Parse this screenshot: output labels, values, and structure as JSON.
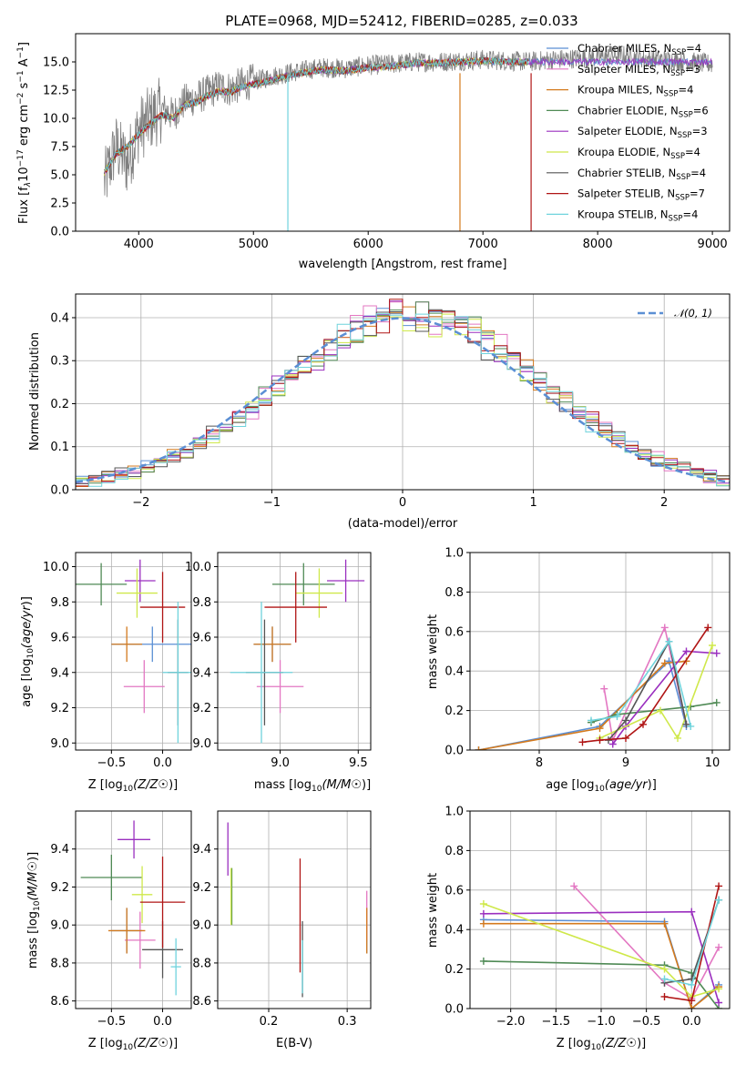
{
  "figure": {
    "title": "PLATE=0968, MJD=52412, FIBERID=0285, z=0.033"
  },
  "series": [
    {
      "name": "Chabrier MILES, N$_{SSP}$=4",
      "label": "Chabrier MILES, N",
      "n": "=4",
      "color": "#5b8fd4"
    },
    {
      "name": "Salpeter MILES, N$_{SSP}$=3",
      "label": "Salpeter MILES, N",
      "n": "=3",
      "color": "#e377c2"
    },
    {
      "name": "Kroupa MILES, N$_{SSP}$=4",
      "label": "Kroupa MILES, N",
      "n": "=4",
      "color": "#d47a1d"
    },
    {
      "name": "Chabrier ELODIE, N$_{SSP}$=6",
      "label": "Chabrier ELODIE, N",
      "n": "=6",
      "color": "#4f8a55"
    },
    {
      "name": "Salpeter ELODIE, N$_{SSP}$=3",
      "label": "Salpeter ELODIE, N",
      "n": "=3",
      "color": "#9a2fbf"
    },
    {
      "name": "Kroupa ELODIE, N$_{SSP}$=4",
      "label": "Kroupa ELODIE, N",
      "n": "=4",
      "color": "#cfe84a"
    },
    {
      "name": "Chabrier STELIB, N$_{SSP}$=4",
      "label": "Chabrier STELIB, N",
      "n": "=4",
      "color": "#555555"
    },
    {
      "name": "Salpeter STELIB, N$_{SSP}$=7",
      "label": "Salpeter STELIB, N",
      "n": "=7",
      "color": "#b01515"
    },
    {
      "name": "Kroupa STELIB, N$_{SSP}$=4",
      "label": "Kroupa STELIB, N",
      "n": "=4",
      "color": "#6fd3dc"
    }
  ],
  "sub_ssp": "SSP",
  "chart_data": [
    {
      "id": "spectrum",
      "type": "line",
      "xlabel": "wavelength [Angstrom, rest frame]",
      "ylabel": "Flux [f",
      "xlim": [
        3450,
        9150
      ],
      "ylim": [
        0,
        17.5
      ],
      "xticks": [
        4000,
        5000,
        6000,
        7000,
        8000,
        9000
      ],
      "yticks": [
        0.0,
        2.5,
        5.0,
        7.5,
        10.0,
        12.5,
        15.0
      ],
      "ytick_labels": [
        "0.0",
        "2.5",
        "5.0",
        "7.5",
        "10.0",
        "12.5",
        "15.0"
      ],
      "data_wave": [
        3700,
        3800,
        3900,
        4000,
        4100,
        4200,
        4300,
        4400,
        4500,
        4600,
        4700,
        4800,
        4900,
        5000,
        5200,
        5400,
        5600,
        5800,
        6000,
        6200,
        6400,
        6600,
        6800,
        7000,
        7200,
        7400,
        7600,
        7800,
        8000,
        8200,
        8400,
        8600,
        8800,
        9000
      ],
      "data_flux": [
        4.2,
        7.5,
        6.0,
        9.0,
        10.0,
        10.8,
        10.3,
        11.5,
        11.8,
        12.3,
        12.8,
        12.6,
        13.0,
        13.3,
        13.8,
        14.2,
        14.5,
        14.4,
        14.7,
        14.8,
        15.0,
        15.0,
        15.1,
        15.2,
        15.1,
        15.0,
        15.2,
        15.3,
        15.4,
        15.6,
        15.3,
        15.2,
        15.0,
        14.8
      ],
      "model_wave": [
        3700,
        3800,
        3900,
        4000,
        4100,
        4200,
        4300,
        4400,
        4500,
        4600,
        4700,
        4800,
        4900,
        5000,
        5200,
        5400,
        5600,
        5800,
        6000,
        6200,
        6400,
        6600,
        6800,
        7000,
        7200,
        7400
      ],
      "model_flux": [
        5.2,
        6.8,
        7.5,
        8.6,
        9.5,
        10.3,
        10.0,
        11.2,
        11.4,
        12.0,
        12.4,
        12.3,
        12.8,
        13.0,
        13.5,
        14.0,
        14.3,
        14.2,
        14.5,
        14.6,
        14.9,
        14.9,
        15.0,
        15.1,
        15.0,
        15.0
      ]
    },
    {
      "id": "residuals",
      "type": "histogram",
      "xlabel": "(data-model)/error",
      "ylabel": "Normed distribution",
      "xlim": [
        -2.5,
        2.5
      ],
      "ylim": [
        0,
        0.455
      ],
      "xticks": [
        -2,
        -1,
        0,
        1,
        2
      ],
      "xtick_labels": [
        "−2",
        "−1",
        "0",
        "1",
        "2"
      ],
      "yticks": [
        0.0,
        0.1,
        0.2,
        0.3,
        0.4
      ],
      "ytick_labels": [
        "0.0",
        "0.1",
        "0.2",
        "0.3",
        "0.4"
      ],
      "legend": "𝒩(0, 1)",
      "gauss_color": "#5b8fd4"
    },
    {
      "id": "Z_age",
      "type": "errorbar",
      "xlabel": "Z [log",
      "ylabel": "age  [log",
      "xlim": [
        -0.85,
        0.28
      ],
      "ylim": [
        8.96,
        10.08
      ],
      "xticks": [
        -0.5,
        0.0
      ],
      "xtick_labels": [
        "−0.5",
        "0.0"
      ],
      "yticks": [
        9.0,
        9.2,
        9.4,
        9.6,
        9.8,
        10.0
      ],
      "ytick_labels": [
        "9.0",
        "9.2",
        "9.4",
        "9.6",
        "9.8",
        "10.0"
      ],
      "points": [
        {
          "s": 0,
          "x": -0.1,
          "y": 9.56,
          "xe": 0.4,
          "ye": 0.1
        },
        {
          "s": 1,
          "x": -0.18,
          "y": 9.32,
          "xe": 0.2,
          "ye": 0.15
        },
        {
          "s": 2,
          "x": -0.35,
          "y": 9.56,
          "xe": 0.15,
          "ye": 0.1
        },
        {
          "s": 3,
          "x": -0.6,
          "y": 9.9,
          "xe": 0.25,
          "ye": 0.12
        },
        {
          "s": 4,
          "x": -0.22,
          "y": 9.92,
          "xe": 0.15,
          "ye": 0.12
        },
        {
          "s": 5,
          "x": -0.25,
          "y": 9.85,
          "xe": 0.2,
          "ye": 0.14
        },
        {
          "s": 6,
          "x": 0.15,
          "y": 9.4,
          "xe": 0.1,
          "ye": 0.3
        },
        {
          "s": 7,
          "x": 0.0,
          "y": 9.77,
          "xe": 0.22,
          "ye": 0.2
        },
        {
          "s": 8,
          "x": 0.15,
          "y": 9.4,
          "xe": 0.15,
          "ye": 0.4
        }
      ]
    },
    {
      "id": "mass_age",
      "type": "errorbar",
      "xlabel": "mass [log",
      "ylabel": "",
      "xlim": [
        8.6,
        9.58
      ],
      "ylim": [
        8.96,
        10.08
      ],
      "xticks": [
        9.0,
        9.5
      ],
      "xtick_labels": [
        "9.0",
        "9.5"
      ],
      "yticks": [
        9.0,
        9.2,
        9.4,
        9.6,
        9.8,
        10.0
      ],
      "ytick_labels": [
        "9.0",
        "9.2",
        "9.4",
        "9.6",
        "9.8",
        "10.0"
      ],
      "points": [
        {
          "s": 0,
          "x": 8.95,
          "y": 9.56,
          "xe": 0.12,
          "ye": 0.1
        },
        {
          "s": 1,
          "x": 9.0,
          "y": 9.32,
          "xe": 0.15,
          "ye": 0.15
        },
        {
          "s": 2,
          "x": 8.95,
          "y": 9.56,
          "xe": 0.12,
          "ye": 0.1
        },
        {
          "s": 3,
          "x": 9.15,
          "y": 9.9,
          "xe": 0.2,
          "ye": 0.12
        },
        {
          "s": 4,
          "x": 9.42,
          "y": 9.92,
          "xe": 0.12,
          "ye": 0.12
        },
        {
          "s": 5,
          "x": 9.25,
          "y": 9.85,
          "xe": 0.15,
          "ye": 0.14
        },
        {
          "s": 6,
          "x": 8.9,
          "y": 9.4,
          "xe": 0.12,
          "ye": 0.3
        },
        {
          "s": 7,
          "x": 9.1,
          "y": 9.77,
          "xe": 0.2,
          "ye": 0.2
        },
        {
          "s": 8,
          "x": 8.88,
          "y": 9.4,
          "xe": 0.2,
          "ye": 0.4
        }
      ]
    },
    {
      "id": "age_weight",
      "type": "line",
      "xlabel": "age  [log",
      "ylabel": "mass weight",
      "xlim": [
        7.2,
        10.2
      ],
      "ylim": [
        0,
        1.0
      ],
      "xticks": [
        8,
        9,
        10
      ],
      "xtick_labels": [
        "8",
        "9",
        "10"
      ],
      "yticks": [
        0.0,
        0.2,
        0.4,
        0.6,
        0.8,
        1.0
      ],
      "ytick_labels": [
        "0.0",
        "0.2",
        "0.4",
        "0.6",
        "0.8",
        "1.0"
      ],
      "lines": [
        {
          "s": 0,
          "x": [
            7.3,
            8.7,
            9.5,
            9.7
          ],
          "y": [
            0.0,
            0.12,
            0.45,
            0.12
          ]
        },
        {
          "s": 1,
          "x": 8.75,
          "y": 0.31,
          "xs": [
            8.75,
            8.85,
            9.45,
            9.7
          ],
          "ys": [
            0.31,
            0.05,
            0.62,
            0.13
          ]
        },
        {
          "s": 2,
          "x": [
            7.3,
            8.7,
            9.45,
            9.7
          ],
          "y": [
            0.0,
            0.11,
            0.44,
            0.45
          ]
        },
        {
          "s": 3,
          "x": [
            8.6,
            8.9,
            9.75,
            10.05
          ],
          "y": [
            0.14,
            0.18,
            0.22,
            0.24
          ]
        },
        {
          "s": 4,
          "x": [
            8.85,
            9.0,
            9.7,
            10.05
          ],
          "y": [
            0.03,
            0.12,
            0.5,
            0.49
          ]
        },
        {
          "s": 5,
          "x": [
            8.7,
            9.4,
            9.6,
            10.0
          ],
          "y": [
            0.06,
            0.2,
            0.06,
            0.53
          ]
        },
        {
          "s": 6,
          "x": [
            8.8,
            9.0,
            9.5,
            9.7
          ],
          "y": [
            0.05,
            0.15,
            0.55,
            0.13
          ]
        },
        {
          "s": 7,
          "x": [
            8.5,
            8.7,
            9.0,
            9.2,
            9.95
          ],
          "y": [
            0.04,
            0.05,
            0.06,
            0.13,
            0.62
          ]
        },
        {
          "s": 8,
          "x": [
            8.6,
            8.9,
            9.5,
            9.75
          ],
          "y": [
            0.15,
            0.17,
            0.55,
            0.12
          ]
        }
      ]
    },
    {
      "id": "Z_mass",
      "type": "errorbar",
      "xlabel": "Z [log",
      "ylabel": "mass [log",
      "xlim": [
        -0.85,
        0.28
      ],
      "ylim": [
        8.56,
        9.6
      ],
      "xticks": [
        -0.5,
        0.0
      ],
      "xtick_labels": [
        "−0.5",
        "0.0"
      ],
      "yticks": [
        8.6,
        8.8,
        9.0,
        9.2,
        9.4
      ],
      "ytick_labels": [
        "8.6",
        "8.8",
        "9.0",
        "9.2",
        "9.4"
      ],
      "points": [
        {
          "s": 0,
          "x": -0.35,
          "y": 8.97,
          "xe": 0.15,
          "ye": 0.12
        },
        {
          "s": 1,
          "x": -0.22,
          "y": 8.92,
          "xe": 0.15,
          "ye": 0.15
        },
        {
          "s": 2,
          "x": -0.35,
          "y": 8.97,
          "xe": 0.18,
          "ye": 0.12
        },
        {
          "s": 3,
          "x": -0.5,
          "y": 9.25,
          "xe": 0.3,
          "ye": 0.12
        },
        {
          "s": 4,
          "x": -0.28,
          "y": 9.45,
          "xe": 0.16,
          "ye": 0.1
        },
        {
          "s": 5,
          "x": -0.2,
          "y": 9.16,
          "xe": 0.1,
          "ye": 0.15
        },
        {
          "s": 6,
          "x": 0.0,
          "y": 8.87,
          "xe": 0.2,
          "ye": 0.15
        },
        {
          "s": 7,
          "x": 0.0,
          "y": 9.12,
          "xe": 0.22,
          "ye": 0.24
        },
        {
          "s": 8,
          "x": 0.13,
          "y": 8.78,
          "xe": 0.05,
          "ye": 0.15
        }
      ]
    },
    {
      "id": "ebv_mass",
      "type": "errorbar",
      "xlabel": "E(B-V)",
      "ylabel": "",
      "xlim": [
        0.135,
        0.33
      ],
      "ylim": [
        8.56,
        9.6
      ],
      "xticks": [
        0.2,
        0.3
      ],
      "xtick_labels": [
        "0.2",
        "0.3"
      ],
      "yticks": [
        8.6,
        8.8,
        9.0,
        9.2,
        9.4
      ],
      "ytick_labels": [
        "8.6",
        "8.8",
        "9.0",
        "9.2",
        "9.4"
      ],
      "points": [
        {
          "s": 0,
          "x": 0.325,
          "y": 8.97,
          "xe": 0.0,
          "ye": 0.12
        },
        {
          "s": 1,
          "x": 0.325,
          "y": 9.05,
          "xe": 0.0,
          "ye": 0.13
        },
        {
          "s": 2,
          "x": 0.325,
          "y": 8.97,
          "xe": 0.0,
          "ye": 0.12
        },
        {
          "s": 3,
          "x": 0.153,
          "y": 9.15,
          "xe": 0.0,
          "ye": 0.15
        },
        {
          "s": 4,
          "x": 0.148,
          "y": 9.4,
          "xe": 0.0,
          "ye": 0.14
        },
        {
          "s": 5,
          "x": 0.152,
          "y": 9.15,
          "xe": 0.0,
          "ye": 0.15
        },
        {
          "s": 6,
          "x": 0.243,
          "y": 8.82,
          "xe": 0.0,
          "ye": 0.2
        },
        {
          "s": 7,
          "x": 0.24,
          "y": 9.05,
          "xe": 0.0,
          "ye": 0.3
        },
        {
          "s": 8,
          "x": 0.243,
          "y": 8.78,
          "xe": 0.0,
          "ye": 0.14
        }
      ]
    },
    {
      "id": "Z_weight",
      "type": "line",
      "xlabel": "Z [log",
      "ylabel": "mass weight",
      "xlim": [
        -2.45,
        0.42
      ],
      "ylim": [
        0,
        1.0
      ],
      "xticks": [
        -2.0,
        -1.5,
        -1.0,
        -0.5,
        0.0
      ],
      "xtick_labels": [
        "−2.0",
        "−1.5",
        "−1.0",
        "−0.5",
        "0.0"
      ],
      "yticks": [
        0.0,
        0.2,
        0.4,
        0.6,
        0.8,
        1.0
      ],
      "ytick_labels": [
        "0.0",
        "0.2",
        "0.4",
        "0.6",
        "0.8",
        "1.0"
      ],
      "lines": [
        {
          "s": 0,
          "x": [
            -2.3,
            -0.3,
            0.0,
            0.3
          ],
          "y": [
            0.45,
            0.44,
            0.0,
            0.12
          ]
        },
        {
          "s": 1,
          "x": [
            -1.3,
            -0.3,
            0.0,
            0.3
          ],
          "y": [
            0.62,
            0.13,
            0.05,
            0.31
          ]
        },
        {
          "s": 2,
          "x": [
            -2.3,
            -0.3,
            0.0,
            0.3
          ],
          "y": [
            0.43,
            0.43,
            0.0,
            0.11
          ]
        },
        {
          "s": 3,
          "x": [
            -2.3,
            -0.3,
            0.0,
            0.3
          ],
          "y": [
            0.24,
            0.22,
            0.18,
            0.0
          ]
        },
        {
          "s": 4,
          "x": [
            -2.3,
            0.0,
            0.3
          ],
          "y": [
            0.48,
            0.49,
            0.03
          ]
        },
        {
          "s": 5,
          "x": [
            -2.3,
            -0.3,
            0.0,
            0.3
          ],
          "y": [
            0.53,
            0.2,
            0.06,
            0.1
          ]
        },
        {
          "s": 6,
          "x": [
            -0.3,
            0.0,
            0.3
          ],
          "y": [
            0.13,
            0.15,
            0.55
          ]
        },
        {
          "s": 7,
          "x": [
            -0.3,
            0.0,
            0.3
          ],
          "y": [
            0.06,
            0.04,
            0.62
          ]
        },
        {
          "s": 8,
          "x": [
            -0.3,
            0.0,
            0.3
          ],
          "y": [
            0.15,
            0.12,
            0.55
          ]
        }
      ]
    }
  ]
}
